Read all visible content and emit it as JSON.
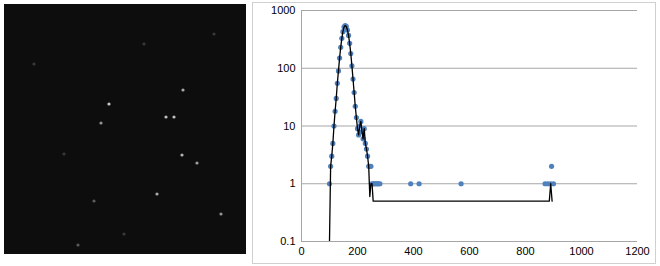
{
  "chart_data": {
    "type": "scatter",
    "log": "y",
    "grid": true,
    "xlim": [
      0,
      1200
    ],
    "xticks": [
      0,
      200,
      400,
      600,
      800,
      1000,
      1200
    ],
    "ylim": [
      0.1,
      1000
    ],
    "yticks": [
      0.1,
      1,
      10,
      100,
      1000
    ],
    "series": [
      {
        "type": "scatter",
        "color": "#4f81bd",
        "marker": "circle",
        "x": [
          100,
          104,
          108,
          112,
          116,
          120,
          124,
          128,
          132,
          136,
          140,
          144,
          148,
          152,
          156,
          160,
          164,
          168,
          172,
          176,
          180,
          184,
          188,
          192,
          196,
          200,
          204,
          208,
          212,
          216,
          220,
          224,
          228,
          232,
          236,
          240,
          244,
          248,
          252,
          256,
          260,
          264,
          268,
          272,
          276,
          280,
          390,
          420,
          570,
          870,
          880,
          890,
          893,
          900
        ],
        "values": [
          1,
          2,
          3,
          5,
          10,
          18,
          30,
          55,
          90,
          150,
          230,
          330,
          430,
          520,
          550,
          530,
          460,
          370,
          270,
          180,
          110,
          65,
          38,
          22,
          14,
          9,
          7,
          10,
          12,
          8,
          6,
          9,
          5,
          4,
          3,
          2,
          2,
          2,
          1,
          1,
          1,
          1,
          1,
          1,
          1,
          1,
          1,
          1,
          1,
          1,
          1,
          1,
          2,
          1
        ]
      },
      {
        "type": "line",
        "color": "#000000",
        "line_style": "solid",
        "x": [
          100,
          104,
          108,
          112,
          116,
          120,
          124,
          128,
          132,
          136,
          140,
          144,
          148,
          152,
          156,
          160,
          164,
          168,
          172,
          176,
          180,
          184,
          188,
          192,
          196,
          200,
          204,
          208,
          212,
          216,
          220,
          224,
          228,
          232,
          236,
          240,
          244,
          248,
          252,
          256,
          885,
          890,
          895
        ],
        "values": [
          0.1,
          2,
          3,
          5,
          10,
          18,
          30,
          55,
          90,
          150,
          230,
          330,
          430,
          520,
          550,
          530,
          460,
          370,
          270,
          180,
          110,
          65,
          38,
          22,
          14,
          9,
          7,
          10,
          12,
          8,
          6,
          9,
          5,
          4,
          3,
          2,
          0.6,
          1,
          1,
          0.5,
          0.5,
          1,
          0.5
        ]
      }
    ]
  }
}
